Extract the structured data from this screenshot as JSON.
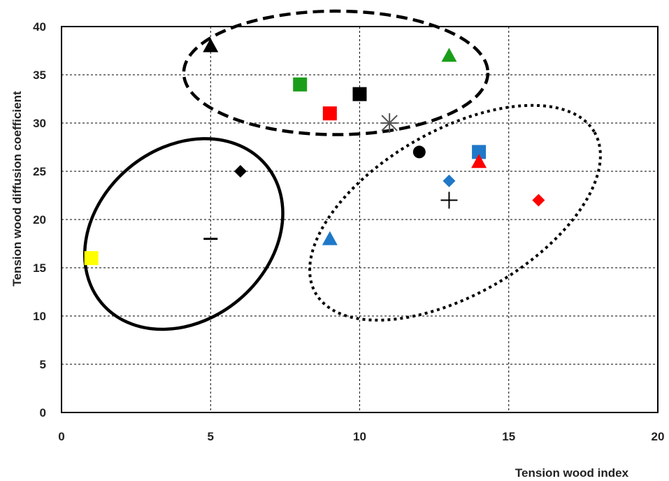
{
  "chart_data": {
    "type": "scatter",
    "xlabel": "Tension wood index",
    "ylabel": "Tension wood diffusion coefficient",
    "xlim": [
      0,
      20
    ],
    "ylim": [
      0,
      40
    ],
    "x_ticks": [
      "0",
      "5",
      "10",
      "15",
      "20"
    ],
    "y_ticks": [
      "0",
      "5",
      "10",
      "15",
      "20",
      "25",
      "30",
      "35",
      "40"
    ],
    "grid": true,
    "points": [
      {
        "x": 1,
        "y": 16,
        "marker": "square",
        "color": "#ffff00"
      },
      {
        "x": 5,
        "y": 18,
        "marker": "dash",
        "color": "#000000"
      },
      {
        "x": 6,
        "y": 25,
        "marker": "diamond",
        "color": "#000000"
      },
      {
        "x": 5,
        "y": 38,
        "marker": "triangle",
        "color": "#000000"
      },
      {
        "x": 8,
        "y": 34,
        "marker": "square",
        "color": "#1a9e1a"
      },
      {
        "x": 9,
        "y": 31,
        "marker": "square",
        "color": "#ff0000"
      },
      {
        "x": 10,
        "y": 33,
        "marker": "square",
        "color": "#000000"
      },
      {
        "x": 11,
        "y": 30,
        "marker": "asterisk",
        "color": "#555555"
      },
      {
        "x": 13,
        "y": 37,
        "marker": "triangle",
        "color": "#1a9e1a"
      },
      {
        "x": 9,
        "y": 18,
        "marker": "triangle",
        "color": "#1f78c8"
      },
      {
        "x": 12,
        "y": 27,
        "marker": "circle",
        "color": "#000000"
      },
      {
        "x": 13,
        "y": 24,
        "marker": "diamond",
        "color": "#1f78c8"
      },
      {
        "x": 13,
        "y": 22,
        "marker": "plus",
        "color": "#000000"
      },
      {
        "x": 14,
        "y": 27,
        "marker": "square",
        "color": "#1f78c8"
      },
      {
        "x": 14,
        "y": 26,
        "marker": "triangle",
        "color": "#ff0000"
      },
      {
        "x": 16,
        "y": 22,
        "marker": "diamond",
        "color": "#ff0000"
      }
    ],
    "group_outlines": [
      {
        "style": "solid",
        "cx": 4.1,
        "cy": 18.5,
        "rx": 3.6,
        "ry": 8.9,
        "angle": -40
      },
      {
        "style": "dashed",
        "cx": 9.2,
        "cy": 35.2,
        "rx": 5.1,
        "ry": 6.4,
        "angle": 0
      },
      {
        "style": "dotted",
        "cx": 13.2,
        "cy": 20.7,
        "rx": 5.4,
        "ry": 8.5,
        "angle": -30
      }
    ]
  }
}
